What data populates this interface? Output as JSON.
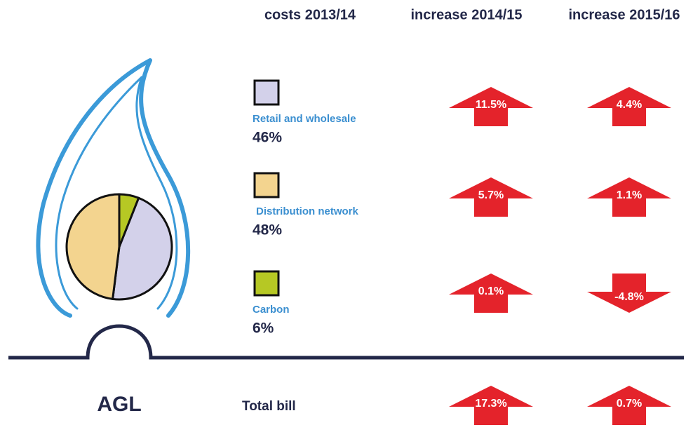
{
  "chart_data": {
    "type": "pie",
    "categories": [
      "Retail and wholesale",
      "Distribution network",
      "Carbon"
    ],
    "values": [
      46,
      48,
      6
    ],
    "value_labels": [
      "46%",
      "48%",
      "6%"
    ],
    "colors": [
      "#d3d1ea",
      "#f3d48f",
      "#b6c824"
    ]
  },
  "headers": [
    "costs 2013/14",
    "increase 2014/15",
    "increase 2015/16"
  ],
  "increases": [
    [
      11.5,
      4.4
    ],
    [
      5.7,
      1.1
    ],
    [
      0.1,
      -4.8
    ]
  ],
  "increase_labels": [
    [
      "11.5%",
      "4.4%"
    ],
    [
      "5.7%",
      "1.1%"
    ],
    [
      "0.1%",
      "-4.8%"
    ]
  ],
  "total": {
    "label": "Total bill",
    "increases": [
      17.3,
      0.7
    ],
    "increase_labels": [
      "17.3%",
      "0.7%"
    ]
  },
  "brand": "AGL"
}
